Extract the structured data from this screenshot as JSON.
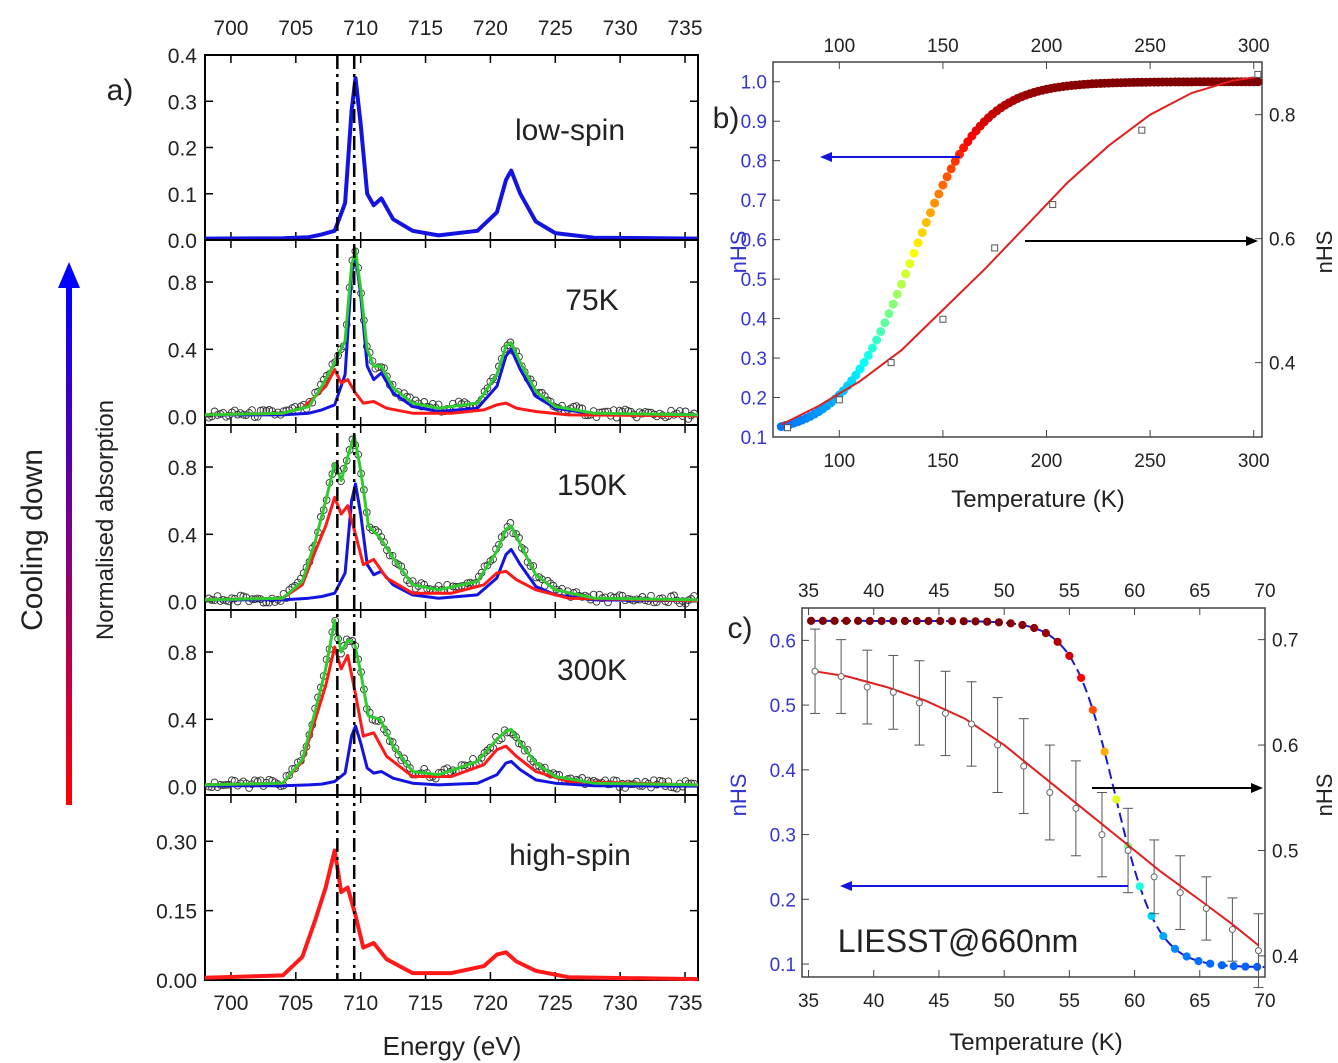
{
  "colors": {
    "hs": "#ff1a1a",
    "ls": "#1414e0",
    "fit": "#2ecc2e",
    "exp": "#333333",
    "fitline": "#e02020",
    "dash": "#1a1acc"
  },
  "figure": {
    "side_label": "Cooling down"
  },
  "chart_data": [
    {
      "id": "a",
      "type": "line",
      "panel_label": "a)",
      "xlabel": "Energy (eV)",
      "ylabel": "Normalised absorption",
      "xlim": [
        698,
        736
      ],
      "xticks": [
        "700",
        "705",
        "710",
        "715",
        "720",
        "725",
        "730",
        "735"
      ],
      "dashdot_lines_x": [
        708.2,
        709.5
      ],
      "subpanels": [
        {
          "label": "low-spin",
          "ylim": [
            0,
            0.4
          ],
          "yticks": [
            "0.0",
            "0.1",
            "0.2",
            "0.3",
            "0.4"
          ],
          "series": [
            {
              "role": "ls",
              "x": [
                698,
                704,
                706,
                707,
                708,
                708.8,
                709.3,
                709.6,
                710,
                710.5,
                711,
                711.6,
                712.5,
                714,
                716,
                719,
                720.5,
                721.2,
                721.6,
                722.3,
                723.5,
                725,
                728,
                736
              ],
              "y": [
                0.003,
                0.004,
                0.006,
                0.012,
                0.02,
                0.08,
                0.28,
                0.35,
                0.25,
                0.1,
                0.075,
                0.09,
                0.045,
                0.02,
                0.01,
                0.02,
                0.06,
                0.13,
                0.15,
                0.1,
                0.04,
                0.015,
                0.005,
                0.003
              ]
            }
          ]
        },
        {
          "label": "75K",
          "ylim": [
            -0.05,
            1.05
          ],
          "yticks": [
            "0.0",
            "0.4",
            "0.8"
          ],
          "series": [
            {
              "role": "ls",
              "x": [
                698,
                704,
                706,
                707,
                708,
                708.8,
                709.3,
                709.6,
                710,
                710.5,
                711,
                711.6,
                712.5,
                714,
                716,
                719,
                720.5,
                721.2,
                721.6,
                722.3,
                723.5,
                725,
                728,
                736
              ],
              "y": [
                0.01,
                0.01,
                0.02,
                0.04,
                0.07,
                0.25,
                0.85,
                0.97,
                0.72,
                0.3,
                0.22,
                0.26,
                0.14,
                0.06,
                0.03,
                0.05,
                0.18,
                0.36,
                0.4,
                0.28,
                0.12,
                0.05,
                0.015,
                0.01
              ]
            },
            {
              "role": "hs",
              "x": [
                698,
                704,
                705.5,
                706.5,
                707.3,
                708,
                708.5,
                709,
                709.6,
                710.2,
                711,
                712,
                714,
                717,
                719.5,
                720.5,
                721.2,
                722,
                723.5,
                726,
                736
              ],
              "y": [
                0.01,
                0.02,
                0.05,
                0.12,
                0.18,
                0.28,
                0.2,
                0.22,
                0.14,
                0.08,
                0.09,
                0.05,
                0.02,
                0.02,
                0.04,
                0.07,
                0.08,
                0.05,
                0.03,
                0.01,
                0.005
              ]
            },
            {
              "role": "fit",
              "x": [
                698,
                704,
                706,
                707,
                708,
                708.8,
                709.3,
                709.6,
                710,
                710.5,
                711,
                711.6,
                712.5,
                714,
                716,
                719,
                720.5,
                721.2,
                721.6,
                722.3,
                723.5,
                725,
                728,
                736
              ],
              "y": [
                0.01,
                0.02,
                0.06,
                0.18,
                0.32,
                0.45,
                0.9,
                0.99,
                0.76,
                0.4,
                0.3,
                0.3,
                0.17,
                0.08,
                0.05,
                0.08,
                0.25,
                0.42,
                0.44,
                0.32,
                0.15,
                0.06,
                0.02,
                0.01
              ]
            }
          ]
        },
        {
          "label": "150K",
          "ylim": [
            -0.05,
            1.05
          ],
          "yticks": [
            "0.0",
            "0.4",
            "0.8"
          ],
          "series": [
            {
              "role": "ls",
              "x": [
                698,
                704,
                706,
                707,
                708,
                708.8,
                709.3,
                709.6,
                710,
                710.5,
                711,
                711.6,
                712.5,
                714,
                716,
                719,
                720.5,
                721.2,
                721.6,
                722.3,
                723.5,
                725,
                728,
                736
              ],
              "y": [
                0.01,
                0.01,
                0.02,
                0.03,
                0.05,
                0.17,
                0.6,
                0.7,
                0.52,
                0.22,
                0.16,
                0.18,
                0.1,
                0.04,
                0.02,
                0.04,
                0.14,
                0.28,
                0.31,
                0.22,
                0.09,
                0.04,
                0.01,
                0.005
              ]
            },
            {
              "role": "hs",
              "x": [
                698,
                704,
                705.5,
                706.5,
                707.3,
                708,
                708.5,
                709,
                709.6,
                710.2,
                711,
                712,
                714,
                717,
                719.5,
                720.5,
                721.2,
                722,
                723.5,
                726,
                736
              ],
              "y": [
                0.01,
                0.02,
                0.1,
                0.3,
                0.45,
                0.62,
                0.52,
                0.57,
                0.4,
                0.22,
                0.25,
                0.14,
                0.05,
                0.05,
                0.1,
                0.17,
                0.18,
                0.13,
                0.07,
                0.02,
                0.005
              ]
            },
            {
              "role": "fit",
              "x": [
                698,
                704,
                705.5,
                706.5,
                707.3,
                708,
                708.5,
                709,
                709.5,
                710,
                710.6,
                711.5,
                712.5,
                714,
                716,
                719,
                720.5,
                721.2,
                721.6,
                722.3,
                723.5,
                725,
                728,
                736
              ],
              "y": [
                0.01,
                0.02,
                0.12,
                0.36,
                0.6,
                0.82,
                0.72,
                0.86,
                0.99,
                0.78,
                0.45,
                0.38,
                0.26,
                0.1,
                0.07,
                0.12,
                0.3,
                0.43,
                0.45,
                0.34,
                0.16,
                0.07,
                0.02,
                0.01
              ]
            }
          ]
        },
        {
          "label": "300K",
          "ylim": [
            -0.05,
            1.05
          ],
          "yticks": [
            "0.0",
            "0.4",
            "0.8"
          ],
          "series": [
            {
              "role": "ls",
              "x": [
                698,
                704,
                706,
                707,
                708,
                708.8,
                709.3,
                709.6,
                710,
                710.5,
                711,
                711.6,
                712.5,
                714,
                716,
                719,
                720.5,
                721.2,
                721.6,
                722.3,
                723.5,
                725,
                728,
                736
              ],
              "y": [
                0.005,
                0.005,
                0.01,
                0.015,
                0.03,
                0.08,
                0.3,
                0.36,
                0.26,
                0.11,
                0.08,
                0.09,
                0.05,
                0.02,
                0.01,
                0.02,
                0.07,
                0.14,
                0.15,
                0.1,
                0.04,
                0.02,
                0.005,
                0.003
              ]
            },
            {
              "role": "hs",
              "x": [
                698,
                704,
                705.5,
                706.5,
                707.3,
                708,
                708.5,
                709,
                709.6,
                710.2,
                711,
                712,
                714,
                717,
                719.5,
                720.5,
                721.2,
                722,
                723.5,
                726,
                736
              ],
              "y": [
                0.01,
                0.02,
                0.15,
                0.4,
                0.6,
                0.83,
                0.7,
                0.78,
                0.55,
                0.3,
                0.32,
                0.18,
                0.06,
                0.06,
                0.13,
                0.22,
                0.24,
                0.18,
                0.09,
                0.03,
                0.01
              ]
            },
            {
              "role": "fit",
              "x": [
                698,
                704,
                705.5,
                706.5,
                707.3,
                708,
                708.5,
                709,
                709.5,
                710,
                710.6,
                711.5,
                712.5,
                714,
                716,
                719,
                720.5,
                721.2,
                721.6,
                722.3,
                723.5,
                725,
                728,
                736
              ],
              "y": [
                0.01,
                0.02,
                0.16,
                0.45,
                0.7,
                0.99,
                0.8,
                0.87,
                0.86,
                0.68,
                0.42,
                0.4,
                0.24,
                0.09,
                0.07,
                0.15,
                0.28,
                0.33,
                0.34,
                0.26,
                0.14,
                0.06,
                0.02,
                0.01
              ]
            }
          ]
        },
        {
          "label": "high-spin",
          "ylim": [
            0,
            0.4
          ],
          "yticks": [
            "0.00",
            "0.15",
            "0.30"
          ],
          "series": [
            {
              "role": "hs",
              "x": [
                698,
                704,
                705.5,
                706.5,
                707.3,
                708,
                708.5,
                709,
                709.6,
                710.2,
                711,
                712,
                714,
                717,
                719.5,
                720.5,
                721.2,
                722,
                723.5,
                726,
                736
              ],
              "y": [
                0.005,
                0.01,
                0.05,
                0.13,
                0.2,
                0.28,
                0.19,
                0.2,
                0.14,
                0.07,
                0.08,
                0.045,
                0.015,
                0.015,
                0.03,
                0.055,
                0.06,
                0.04,
                0.02,
                0.006,
                0.002
              ]
            }
          ]
        }
      ]
    },
    {
      "id": "b",
      "type": "scatter",
      "panel_label": "b)",
      "xlabel": "Temperature (K)",
      "ylabel_left": "nHS",
      "ylabel_right": "nHS",
      "xlim": [
        68,
        304
      ],
      "xticks": [
        "100",
        "150",
        "200",
        "250",
        "300"
      ],
      "ylim_left": [
        0.1,
        1.05
      ],
      "yticks_left": [
        "0.1",
        "0.2",
        "0.3",
        "0.4",
        "0.5",
        "0.6",
        "0.7",
        "0.8",
        "0.9",
        "1.0"
      ],
      "ylim_right": [
        0.28,
        0.885
      ],
      "yticks_right": [
        "0.4",
        "0.6",
        "0.8"
      ],
      "sigmoid_left": {
        "T_half": 135,
        "width": 17,
        "min": 0.105,
        "max": 1.0,
        "T_start": 72,
        "T_end": 302,
        "step": 2
      },
      "squares_right": {
        "x": [
          75,
          100,
          125,
          150,
          175,
          203,
          246,
          302
        ],
        "y": [
          0.295,
          0.34,
          0.4,
          0.47,
          0.585,
          0.655,
          0.775,
          0.865
        ]
      },
      "fit_right": {
        "x": [
          72,
          90,
          110,
          130,
          150,
          170,
          190,
          210,
          230,
          250,
          270,
          290,
          300
        ],
        "y": [
          0.3,
          0.33,
          0.37,
          0.42,
          0.485,
          0.55,
          0.62,
          0.69,
          0.75,
          0.8,
          0.835,
          0.855,
          0.86
        ]
      }
    },
    {
      "id": "c",
      "type": "scatter",
      "panel_label": "c)",
      "annotation": "LIESST@660nm",
      "xlabel": "Temperature (K)",
      "ylabel_left": "nHS",
      "ylabel_right": "nHS",
      "xlim": [
        34.5,
        70
      ],
      "xticks": [
        "35",
        "40",
        "45",
        "50",
        "55",
        "60",
        "65",
        "70"
      ],
      "ylim_left": [
        0.08,
        0.65
      ],
      "yticks_left": [
        "0.1",
        "0.2",
        "0.3",
        "0.4",
        "0.5",
        "0.6"
      ],
      "ylim_right": [
        0.38,
        0.73
      ],
      "yticks_right": [
        "0.4",
        "0.5",
        "0.6",
        "0.7"
      ],
      "sigmoid_left": {
        "T_half": 58.5,
        "width": 1.6,
        "min": 0.095,
        "max": 0.63,
        "T_start": 35.2,
        "T_end": 70,
        "step": 0.9
      },
      "errorbars_right": {
        "x": [
          35.5,
          37.5,
          39.5,
          41.5,
          43.5,
          45.5,
          47.5,
          49.5,
          51.5,
          53.5,
          55.5,
          57.5,
          59.5,
          61.5,
          63.5,
          65.5,
          67.5,
          69.5
        ],
        "y": [
          0.67,
          0.665,
          0.655,
          0.65,
          0.64,
          0.63,
          0.62,
          0.6,
          0.58,
          0.555,
          0.54,
          0.515,
          0.5,
          0.475,
          0.46,
          0.445,
          0.425,
          0.405
        ],
        "err": [
          0.04,
          0.035,
          0.035,
          0.035,
          0.04,
          0.04,
          0.04,
          0.045,
          0.045,
          0.045,
          0.045,
          0.04,
          0.04,
          0.035,
          0.035,
          0.03,
          0.03,
          0.035
        ]
      },
      "fit_right": {
        "x": [
          35.5,
          38,
          41,
          44,
          47,
          50,
          53,
          56,
          59,
          62,
          65,
          67.5,
          69.5
        ],
        "y": [
          0.67,
          0.665,
          0.655,
          0.642,
          0.625,
          0.6,
          0.57,
          0.54,
          0.51,
          0.48,
          0.453,
          0.43,
          0.41
        ]
      }
    }
  ]
}
